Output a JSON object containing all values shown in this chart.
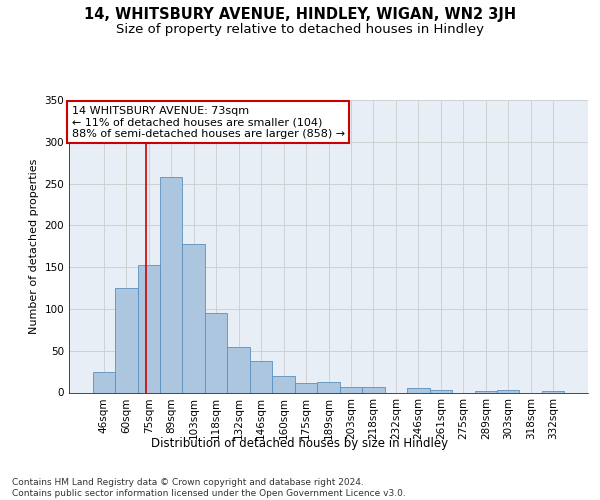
{
  "title1": "14, WHITSBURY AVENUE, HINDLEY, WIGAN, WN2 3JH",
  "title2": "Size of property relative to detached houses in Hindley",
  "xlabel": "Distribution of detached houses by size in Hindley",
  "ylabel": "Number of detached properties",
  "categories": [
    "46sqm",
    "60sqm",
    "75sqm",
    "89sqm",
    "103sqm",
    "118sqm",
    "132sqm",
    "146sqm",
    "160sqm",
    "175sqm",
    "189sqm",
    "203sqm",
    "218sqm",
    "232sqm",
    "246sqm",
    "261sqm",
    "275sqm",
    "289sqm",
    "303sqm",
    "318sqm",
    "332sqm"
  ],
  "values": [
    25,
    125,
    153,
    258,
    178,
    95,
    55,
    38,
    20,
    11,
    12,
    7,
    6,
    0,
    5,
    3,
    0,
    2,
    3,
    0,
    2
  ],
  "bar_color": "#adc6e0",
  "bar_edge_color": "#5a90c0",
  "grid_color": "#cccccc",
  "background_color": "#e8eef5",
  "annotation_text": "14 WHITSBURY AVENUE: 73sqm\n← 11% of detached houses are smaller (104)\n88% of semi-detached houses are larger (858) →",
  "annotation_box_color": "#ffffff",
  "annotation_box_edge": "#cc0000",
  "vline_color": "#cc0000",
  "vline_x": 1.87,
  "ylim": [
    0,
    350
  ],
  "yticks": [
    0,
    50,
    100,
    150,
    200,
    250,
    300,
    350
  ],
  "footer": "Contains HM Land Registry data © Crown copyright and database right 2024.\nContains public sector information licensed under the Open Government Licence v3.0.",
  "title1_fontsize": 10.5,
  "title2_fontsize": 9.5,
  "xlabel_fontsize": 8.5,
  "ylabel_fontsize": 8,
  "tick_fontsize": 7.5,
  "annotation_fontsize": 8,
  "footer_fontsize": 6.5
}
